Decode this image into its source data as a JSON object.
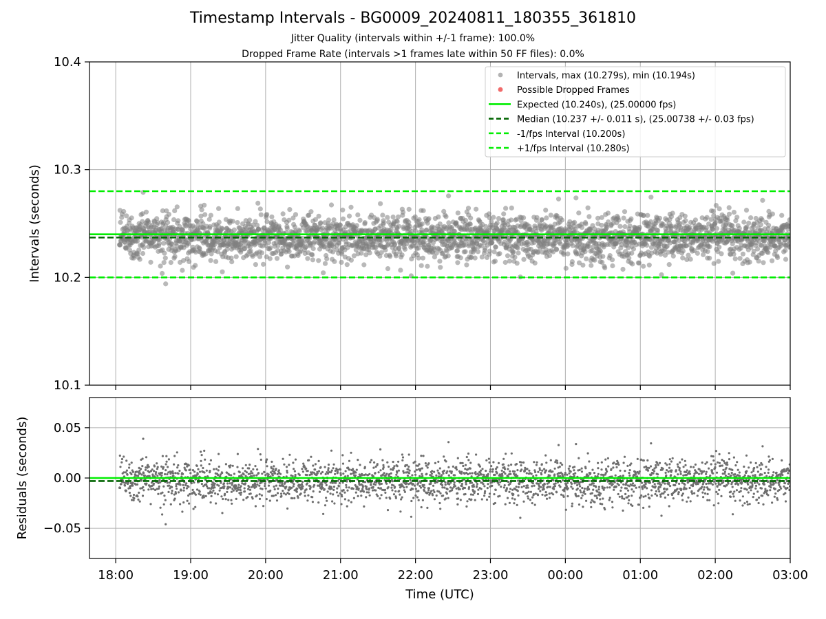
{
  "title": "Timestamp Intervals - BG0009_20240811_180355_361810",
  "subtitle_1": "Jitter Quality (intervals within +/-1 frame): 100.0%",
  "subtitle_2": "Dropped Frame Rate (intervals >1 frames late within 50 FF files): 0.0%",
  "chart_data": [
    {
      "type": "scatter",
      "ylabel": "Intervals (seconds)",
      "ylim": [
        10.1,
        10.4
      ],
      "yticks": [
        "10.1",
        "10.2",
        "10.3",
        "10.4"
      ],
      "x_range": [
        "17:39",
        "03:00"
      ],
      "grid": true,
      "legend_placement": "upper-right",
      "series": [
        {
          "name": "Intervals, max (10.279s), min (10.194s)",
          "color": "#808080",
          "max": 10.279,
          "min": 10.194,
          "center": 10.237,
          "spread": 0.011,
          "x_start": "18:03",
          "x_end": "03:00"
        },
        {
          "name": "Possible Dropped Frames",
          "color": "#f05a5a",
          "values": []
        }
      ],
      "reference_lines": [
        {
          "label": "Expected (10.240s), (25.00000 fps)",
          "value": 10.24,
          "style": "solid",
          "color": "#00ee00"
        },
        {
          "label": "Median (10.237 +/- 0.011 s), (25.00738 +/- 0.03 fps)",
          "value": 10.237,
          "style": "dashed",
          "color": "#006400"
        },
        {
          "label": "-1/fps Interval (10.200s)",
          "value": 10.2,
          "style": "dashed",
          "color": "#00ee00"
        },
        {
          "label": "+1/fps Interval (10.280s)",
          "value": 10.28,
          "style": "dashed",
          "color": "#00ee00"
        }
      ]
    },
    {
      "type": "scatter",
      "ylabel": "Residuals (seconds)",
      "xlabel": "Time (UTC)",
      "ylim": [
        -0.08,
        0.08
      ],
      "yticks": [
        "0.05",
        "0.00",
        "−0.05"
      ],
      "xticks": [
        "18:00",
        "19:00",
        "20:00",
        "21:00",
        "22:00",
        "23:00",
        "00:00",
        "01:00",
        "02:00",
        "03:00"
      ],
      "grid": true,
      "series": [
        {
          "name": "Residuals",
          "color": "#6e6e6e",
          "max": 0.039,
          "min": -0.046,
          "center": -0.003,
          "spread": 0.011
        }
      ],
      "reference_lines": [
        {
          "value": 0.0,
          "style": "solid",
          "color": "#00ee00"
        },
        {
          "value": -0.003,
          "style": "dashed",
          "color": "#006400"
        }
      ]
    }
  ]
}
